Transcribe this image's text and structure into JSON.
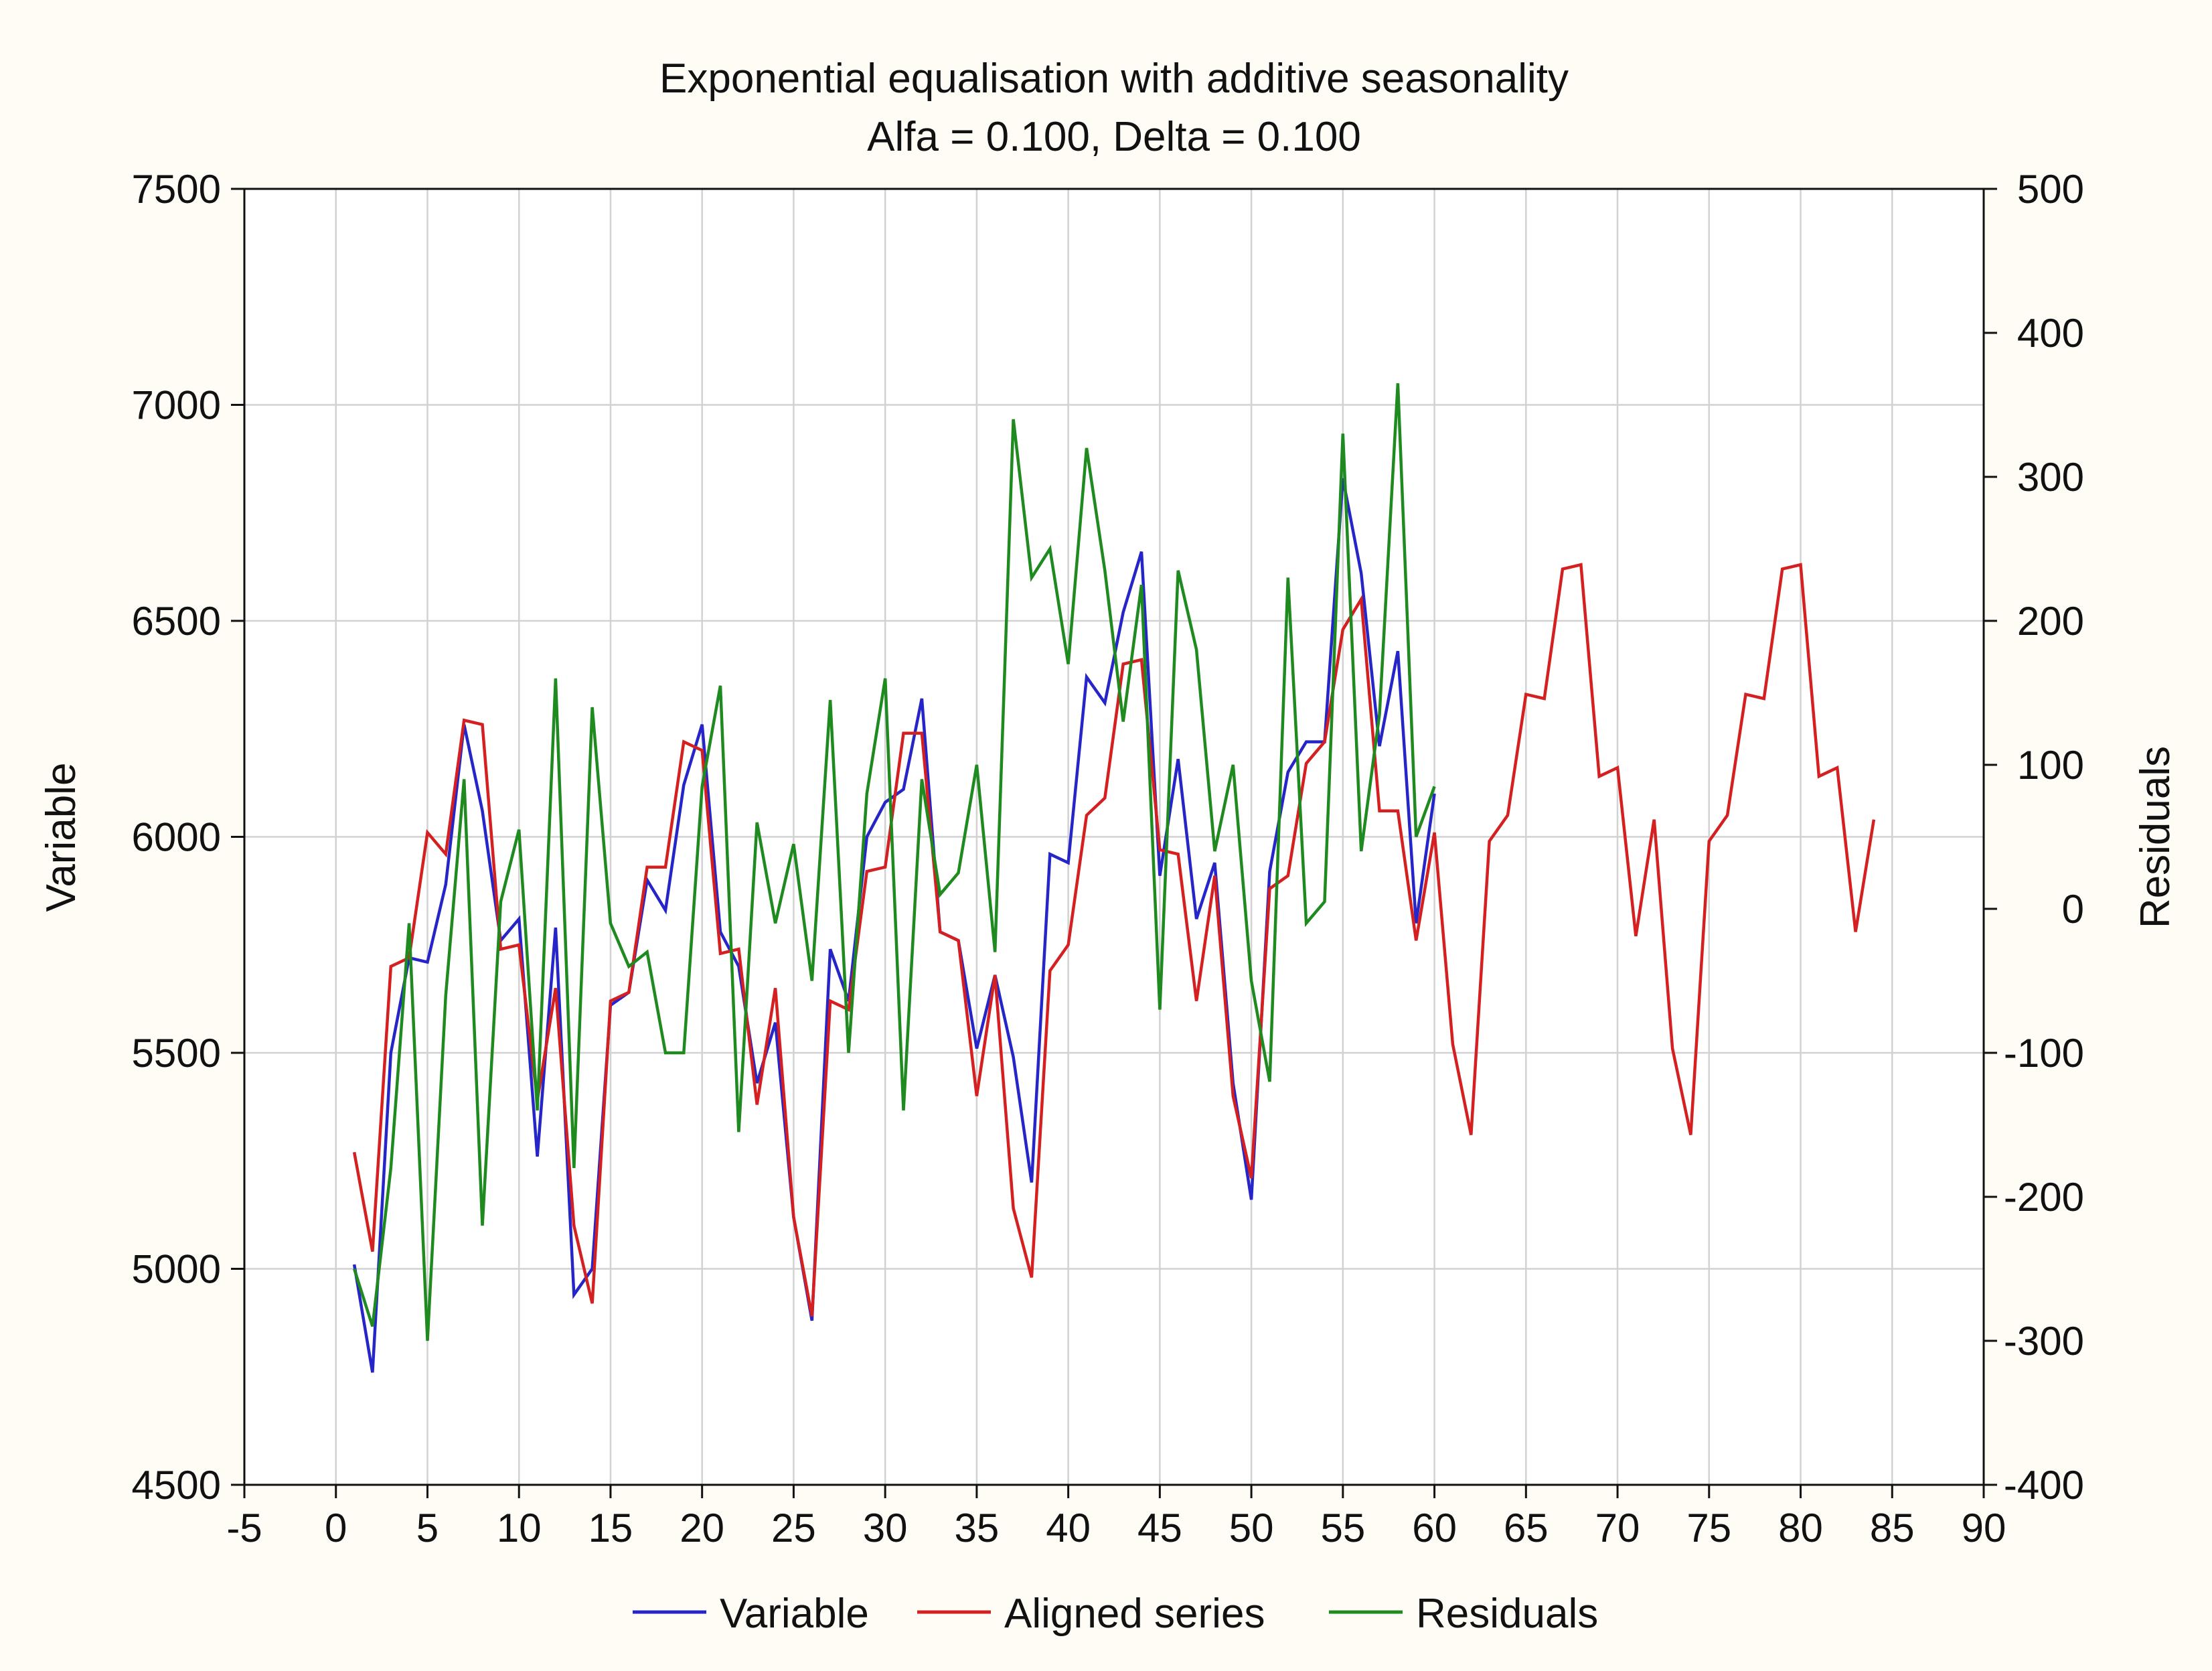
{
  "chart_data": {
    "type": "line",
    "title": "Exponential equalisation with additive seasonality",
    "subtitle": "Alfa = 0.100, Delta = 0.100",
    "xlabel": "",
    "ylabel": "Variable",
    "y2label": "Residuals",
    "xlim": [
      -5,
      90
    ],
    "ylim": [
      4500,
      7500
    ],
    "y2lim": [
      -400,
      500
    ],
    "x_ticks": [
      -5,
      0,
      5,
      10,
      15,
      20,
      25,
      30,
      35,
      40,
      45,
      50,
      55,
      60,
      65,
      70,
      75,
      80,
      85,
      90
    ],
    "y_ticks": [
      4500,
      5000,
      5500,
      6000,
      6500,
      7000,
      7500
    ],
    "y2_ticks": [
      -400,
      -300,
      -200,
      -100,
      0,
      100,
      200,
      300,
      400,
      500
    ],
    "grid": true,
    "legend_position": "bottom",
    "series": [
      {
        "name": "Variable",
        "axis": "left",
        "color": "#2626c8",
        "x": [
          1,
          2,
          3,
          4,
          5,
          6,
          7,
          8,
          9,
          10,
          11,
          12,
          13,
          14,
          15,
          16,
          17,
          18,
          19,
          20,
          21,
          22,
          23,
          24,
          25,
          26,
          27,
          28,
          29,
          30,
          31,
          32,
          33,
          34,
          35,
          36,
          37,
          38,
          39,
          40,
          41,
          42,
          43,
          44,
          45,
          46,
          47,
          48,
          49,
          50,
          51,
          52,
          53,
          54,
          55,
          56,
          57,
          58,
          59,
          60
        ],
        "values": [
          5010,
          4760,
          5500,
          5720,
          5710,
          5890,
          6260,
          6060,
          5760,
          5810,
          5260,
          5790,
          4940,
          5000,
          5610,
          5640,
          5900,
          5830,
          6120,
          6260,
          5780,
          5700,
          5430,
          5570,
          5120,
          4880,
          5740,
          5620,
          6000,
          6080,
          6110,
          6320,
          5780,
          5760,
          5510,
          5680,
          5490,
          5200,
          5960,
          5940,
          6370,
          6310,
          6520,
          6660,
          5910,
          6180,
          5810,
          5940,
          5430,
          5160,
          5920,
          6150,
          6220,
          6220,
          6830,
          6610,
          6210,
          6430,
          5800,
          6100
        ]
      },
      {
        "name": "Aligned series",
        "axis": "left",
        "color": "#d42020",
        "x": [
          1,
          2,
          3,
          4,
          5,
          6,
          7,
          8,
          9,
          10,
          11,
          12,
          13,
          14,
          15,
          16,
          17,
          18,
          19,
          20,
          21,
          22,
          23,
          24,
          25,
          26,
          27,
          28,
          29,
          30,
          31,
          32,
          33,
          34,
          35,
          36,
          37,
          38,
          39,
          40,
          41,
          42,
          43,
          44,
          45,
          46,
          47,
          48,
          49,
          50,
          51,
          52,
          53,
          54,
          55,
          56,
          57,
          58,
          59,
          60,
          61,
          62,
          63,
          64,
          65,
          66,
          67,
          68,
          69,
          70,
          71,
          72,
          73,
          74,
          75,
          76,
          77,
          78,
          79,
          80,
          81,
          82,
          83,
          84
        ],
        "values": [
          5270,
          5040,
          5700,
          5720,
          6010,
          5960,
          6270,
          6260,
          5740,
          5750,
          5390,
          5650,
          5100,
          4920,
          5620,
          5640,
          5930,
          5930,
          6220,
          6200,
          5730,
          5740,
          5380,
          5650,
          5120,
          4890,
          5620,
          5600,
          5920,
          5930,
          6240,
          6240,
          5780,
          5760,
          5400,
          5680,
          5140,
          4980,
          5690,
          5750,
          6050,
          6090,
          6400,
          6410,
          5970,
          5960,
          5620,
          5910,
          5400,
          5210,
          5880,
          5910,
          6170,
          6220,
          6480,
          6550,
          6060,
          6060,
          5760,
          6010,
          5520,
          5310,
          5990,
          6050,
          6330,
          6320,
          6620,
          6630,
          6140,
          6160,
          5770,
          6040,
          5510,
          5310,
          5990,
          6050,
          6330,
          6320,
          6620,
          6630,
          6140,
          6160,
          5780,
          6040
        ]
      },
      {
        "name": "Residuals",
        "axis": "right",
        "color": "#1f8a1f",
        "x": [
          1,
          2,
          3,
          4,
          5,
          6,
          7,
          8,
          9,
          10,
          11,
          12,
          13,
          14,
          15,
          16,
          17,
          18,
          19,
          20,
          21,
          22,
          23,
          24,
          25,
          26,
          27,
          28,
          29,
          30,
          31,
          32,
          33,
          34,
          35,
          36,
          37,
          38,
          39,
          40,
          41,
          42,
          43,
          44,
          45,
          46,
          47,
          48,
          49,
          50,
          51,
          52,
          53,
          54,
          55,
          56,
          57,
          58,
          59,
          60
        ],
        "values": [
          -250,
          -290,
          -180,
          -10,
          -300,
          -60,
          90,
          -220,
          5,
          55,
          -140,
          160,
          -180,
          140,
          -10,
          -40,
          -30,
          -100,
          -100,
          85,
          155,
          -155,
          60,
          -10,
          45,
          -50,
          145,
          -100,
          80,
          160,
          -140,
          90,
          10,
          25,
          100,
          -30,
          340,
          230,
          250,
          170,
          320,
          235,
          130,
          225,
          -70,
          235,
          180,
          40,
          100,
          -50,
          -120,
          230,
          -10,
          5,
          330,
          40,
          135,
          365,
          50,
          85
        ]
      }
    ],
    "legend": [
      "Variable",
      "Aligned series",
      "Residuals"
    ]
  }
}
